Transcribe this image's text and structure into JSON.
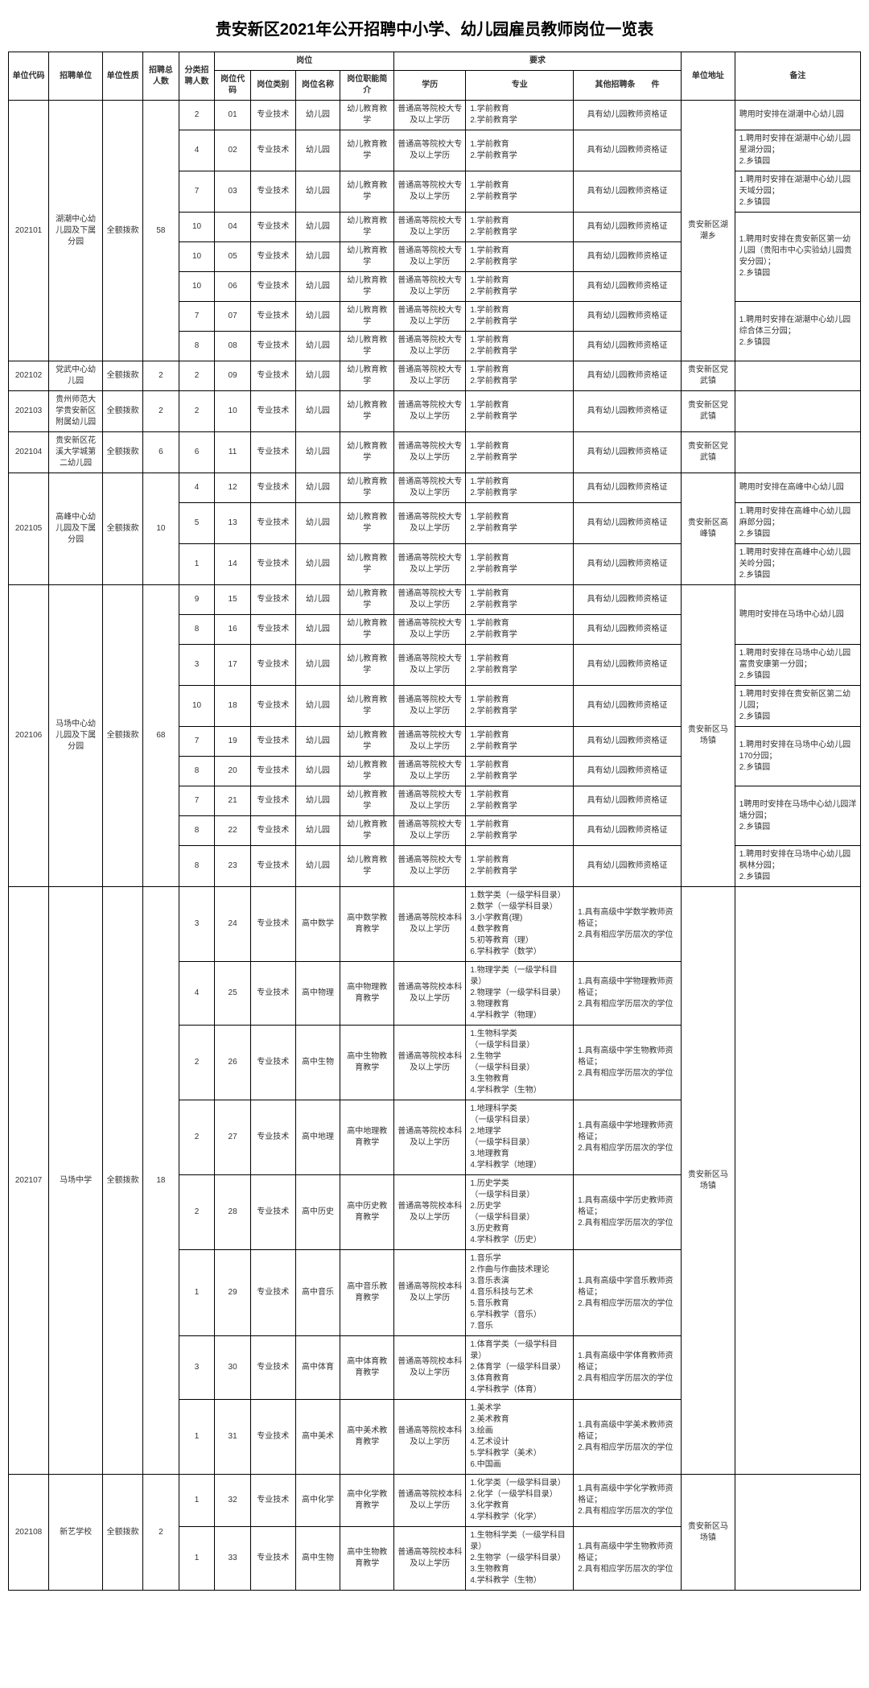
{
  "title": "贵安新区2021年公开招聘中小学、幼儿园雇员教师岗位一览表",
  "headers": {
    "unit_code": "单位代码",
    "unit_name": "招聘单位",
    "unit_nature": "单位性质",
    "total_count": "招聘总人数",
    "sub_count": "分类招聘人数",
    "position": "岗位",
    "pos_code": "岗位代码",
    "pos_type": "岗位类别",
    "pos_name": "岗位名称",
    "pos_desc": "岗位职能简介",
    "requirements": "要求",
    "education": "学历",
    "major": "专业",
    "other_req": "其他招聘条　　件",
    "address": "单位地址",
    "remark": "备注"
  },
  "common": {
    "nature": "全额拨款",
    "ptype": "专业技术",
    "kg_name": "幼儿园",
    "kg_desc": "幼儿教育教学",
    "kg_edu": "普通高等院校大专及以上学历",
    "kg_major": "1.学前教育\n2.学前教育学",
    "kg_other": "具有幼儿园教师资格证",
    "hs_edu": "普通高等院校本科及以上学历"
  },
  "units": [
    {
      "code": "202101",
      "name": "湖潮中心幼儿园及下属分园",
      "total": "58",
      "addr": "贵安新区湖潮乡",
      "rows": [
        {
          "sub": "2",
          "pc": "01",
          "rk": "聘用时安排在湖潮中心幼儿园",
          "rspan": 1
        },
        {
          "sub": "4",
          "pc": "02",
          "rk": "1.聘用时安排在湖潮中心幼儿园星湖分园；\n2.乡镇园",
          "rspan": 1
        },
        {
          "sub": "7",
          "pc": "03",
          "rk": "1.聘用时安排在湖潮中心幼儿园天域分园；\n2.乡镇园",
          "rspan": 1
        },
        {
          "sub": "10",
          "pc": "04",
          "rk": "1.聘用时安排在贵安新区第一幼儿园（贵阳市中心实验幼儿园贵安分园）；\n2.乡镇园",
          "rspan": 3
        },
        {
          "sub": "10",
          "pc": "05"
        },
        {
          "sub": "10",
          "pc": "06"
        },
        {
          "sub": "7",
          "pc": "07",
          "rk": "1.聘用时安排在湖潮中心幼儿园综合体三分园；\n2.乡镇园",
          "rspan": 2
        },
        {
          "sub": "8",
          "pc": "08"
        }
      ]
    },
    {
      "code": "202102",
      "name": "党武中心幼儿园",
      "total": "2",
      "addr": "贵安新区党武镇",
      "rows": [
        {
          "sub": "2",
          "pc": "09",
          "rk": "",
          "rspan": 1
        }
      ]
    },
    {
      "code": "202103",
      "name": "贵州师范大学贵安新区附属幼儿园",
      "total": "2",
      "addr": "贵安新区党武镇",
      "rows": [
        {
          "sub": "2",
          "pc": "10",
          "rk": "",
          "rspan": 1
        }
      ]
    },
    {
      "code": "202104",
      "name": "贵安新区花溪大学城第二幼儿园",
      "total": "6",
      "addr": "贵安新区党武镇",
      "rows": [
        {
          "sub": "6",
          "pc": "11",
          "rk": "",
          "rspan": 1
        }
      ]
    },
    {
      "code": "202105",
      "name": "高峰中心幼儿园及下属分园",
      "total": "10",
      "addr": "贵安新区高峰镇",
      "rows": [
        {
          "sub": "4",
          "pc": "12",
          "rk": "聘用时安排在高峰中心幼儿园",
          "rspan": 1
        },
        {
          "sub": "5",
          "pc": "13",
          "rk": "1.聘用时安排在高峰中心幼儿园麻郎分园；\n2.乡镇园",
          "rspan": 1
        },
        {
          "sub": "1",
          "pc": "14",
          "rk": "1.聘用时安排在高峰中心幼儿园关岭分园；\n2.乡镇园",
          "rspan": 1
        }
      ]
    },
    {
      "code": "202106",
      "name": "马场中心幼儿园及下属分园",
      "total": "68",
      "addr": "贵安新区马场镇",
      "rows": [
        {
          "sub": "9",
          "pc": "15",
          "rk": "聘用时安排在马场中心幼儿园",
          "rspan": 2
        },
        {
          "sub": "8",
          "pc": "16"
        },
        {
          "sub": "3",
          "pc": "17",
          "rk": "1.聘用时安排在马场中心幼儿园富贵安康第一分园；\n2.乡镇园",
          "rspan": 1
        },
        {
          "sub": "10",
          "pc": "18",
          "rk": "1.聘用时安排在贵安新区第二幼儿园；\n2.乡镇园",
          "rspan": 1
        },
        {
          "sub": "7",
          "pc": "19",
          "rk": "1.聘用时安排在马场中心幼儿园170分园；\n2.乡镇园",
          "rspan": 2
        },
        {
          "sub": "8",
          "pc": "20"
        },
        {
          "sub": "7",
          "pc": "21",
          "rk": "1聘用时安排在马场中心幼儿园洋塘分园；\n2.乡镇园",
          "rspan": 2
        },
        {
          "sub": "8",
          "pc": "22"
        },
        {
          "sub": "8",
          "pc": "23",
          "rk": "1.聘用时安排在马场中心幼儿园枫林分园；\n2.乡镇园",
          "rspan": 1
        }
      ]
    }
  ],
  "hs_units": [
    {
      "code": "202107",
      "name": "马场中学",
      "total": "18",
      "addr": "贵安新区马场镇",
      "rows": [
        {
          "sub": "3",
          "pc": "24",
          "pname": "高中数学",
          "pdesc": "高中数学教育教学",
          "major": "1.数学类（一级学科目录）\n2.数学（一级学科目录）\n3.小学教育(理)\n4.数学教育\n5.初等教育（理）\n6.学科教学（数学）",
          "other": "1.具有高级中学数学教师资格证；\n2.具有相应学历层次的学位"
        },
        {
          "sub": "4",
          "pc": "25",
          "pname": "高中物理",
          "pdesc": "高中物理教育教学",
          "major": "1.物理学类（一级学科目录）\n2.物理学（一级学科目录）\n3.物理教育\n4.学科教学（物理）",
          "other": "1.具有高级中学物理教师资格证；\n2.具有相应学历层次的学位"
        },
        {
          "sub": "2",
          "pc": "26",
          "pname": "高中生物",
          "pdesc": "高中生物教育教学",
          "major": "1.生物科学类\n（一级学科目录）\n2.生物学\n（一级学科目录）\n3.生物教育\n4.学科教学（生物）",
          "other": "1.具有高级中学生物教师资格证；\n2.具有相应学历层次的学位"
        },
        {
          "sub": "2",
          "pc": "27",
          "pname": "高中地理",
          "pdesc": "高中地理教育教学",
          "major": "1.地理科学类\n（一级学科目录）\n2.地理学\n（一级学科目录）\n3.地理教育\n4.学科教学（地理）",
          "other": "1.具有高级中学地理教师资格证；\n2.具有相应学历层次的学位"
        },
        {
          "sub": "2",
          "pc": "28",
          "pname": "高中历史",
          "pdesc": "高中历史教育教学",
          "major": "1.历史学类\n（一级学科目录）\n2.历史学\n（一级学科目录）\n3.历史教育\n4.学科教学（历史）",
          "other": "1.具有高级中学历史教师资格证；\n2.具有相应学历层次的学位"
        },
        {
          "sub": "1",
          "pc": "29",
          "pname": "高中音乐",
          "pdesc": "高中音乐教育教学",
          "major": "1.音乐学\n2.作曲与作曲技术理论\n3.音乐表演\n4.音乐科技与艺术\n5.音乐教育\n6.学科教学（音乐）\n7.音乐",
          "other": "1.具有高级中学音乐教师资格证；\n2.具有相应学历层次的学位"
        },
        {
          "sub": "3",
          "pc": "30",
          "pname": "高中体育",
          "pdesc": "高中体育教育教学",
          "major": "1.体育学类（一级学科目录）\n2.体育学（一级学科目录）\n3.体育教育\n4.学科教学（体育）",
          "other": "1.具有高级中学体育教师资格证；\n2.具有相应学历层次的学位"
        },
        {
          "sub": "1",
          "pc": "31",
          "pname": "高中美术",
          "pdesc": "高中美术教育教学",
          "major": "1.美术学\n2.美术教育\n3.绘画\n4.艺术设计\n5.学科教学（美术）\n6.中国画",
          "other": "1.具有高级中学美术教师资格证；\n2.具有相应学历层次的学位"
        }
      ]
    },
    {
      "code": "202108",
      "name": "新艺学校",
      "total": "2",
      "addr": "贵安新区马场镇",
      "rows": [
        {
          "sub": "1",
          "pc": "32",
          "pname": "高中化学",
          "pdesc": "高中化学教育教学",
          "major": "1.化学类（一级学科目录）\n2.化学（一级学科目录）\n3.化学教育\n4.学科教学（化学）",
          "other": "1.具有高级中学化学教师资格证；\n2.具有相应学历层次的学位"
        },
        {
          "sub": "1",
          "pc": "33",
          "pname": "高中生物",
          "pdesc": "高中生物教育教学",
          "major": "1.生物科学类（一级学科目录）\n2.生物学（一级学科目录）\n3.生物教育\n4.学科教学（生物）",
          "other": "1.具有高级中学生物教师资格证；\n2.具有相应学历层次的学位"
        }
      ]
    }
  ]
}
